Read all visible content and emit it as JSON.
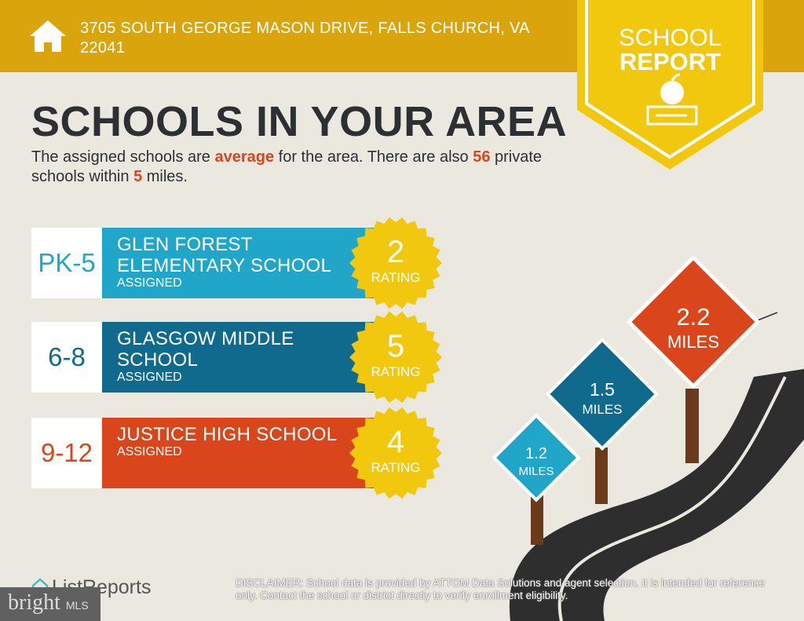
{
  "header": {
    "address": "3705 SOUTH GEORGE MASON DRIVE, FALLS CHURCH, VA 22041",
    "icon": "home-icon"
  },
  "badge": {
    "line1": "SCHOOL",
    "line2": "REPORT",
    "icon": "apple-on-book-icon"
  },
  "title": "SCHOOLS IN YOUR AREA",
  "subtitle": {
    "p1": "The assigned schools are ",
    "quality": "average",
    "p2": " for the area. There are also ",
    "count": "56",
    "p3": " private schools within ",
    "radius": "5",
    "p4": " miles."
  },
  "schools": [
    {
      "grades": "PK-5",
      "name": "GLEN FOREST ELEMENTARY SCHOOL",
      "status": "ASSIGNED",
      "rating": "2",
      "rating_label": "RATING",
      "color": "#1fa6c9"
    },
    {
      "grades": "6-8",
      "name": "GLASGOW MIDDLE SCHOOL",
      "status": "ASSIGNED",
      "rating": "5",
      "rating_label": "RATING",
      "color": "#0f6a8e"
    },
    {
      "grades": "9-12",
      "name": "JUSTICE HIGH SCHOOL",
      "status": "ASSIGNED",
      "rating": "4",
      "rating_label": "RATING",
      "color": "#d9461c"
    }
  ],
  "distances": [
    {
      "value": "1.2",
      "unit": "MILES",
      "color": "#1fa6c9"
    },
    {
      "value": "1.5",
      "unit": "MILES",
      "color": "#0f6a8e"
    },
    {
      "value": "2.2",
      "unit": "MILES",
      "color": "#d9461c"
    }
  ],
  "footer": {
    "logo": "ListReports",
    "watermark": "bright",
    "watermark_suffix": "MLS",
    "disclaimer_label": "DISCLAIMER:",
    "disclaimer": " School data is provided by ATTOM Data Solutions and agent selection. It is intended for reference only. Contact the school or district directly to verify enrollment eligibility."
  }
}
